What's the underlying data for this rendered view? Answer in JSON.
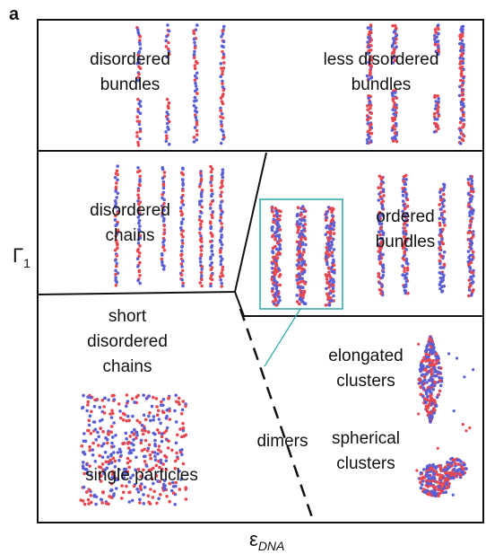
{
  "panel_label": "a",
  "y_axis": {
    "symbol": "Γ",
    "subscript": "1"
  },
  "x_axis": {
    "symbol": "ε",
    "subscript": "DNA"
  },
  "regions": [
    {
      "lines": [
        "disordered",
        "bundles"
      ]
    },
    {
      "lines": [
        "less disordered",
        "bundles"
      ]
    },
    {
      "lines": [
        "disordered",
        "chains"
      ]
    },
    {
      "lines": [
        "ordered",
        "bundles"
      ]
    },
    {
      "lines": [
        "short",
        "disordered",
        "chains"
      ]
    },
    {
      "lines": [
        "elongated",
        "clusters"
      ]
    },
    {
      "lines": [
        "spherical",
        "clusters"
      ]
    },
    {
      "lines": [
        "dimers"
      ]
    },
    {
      "lines": [
        "single particles"
      ]
    }
  ]
}
